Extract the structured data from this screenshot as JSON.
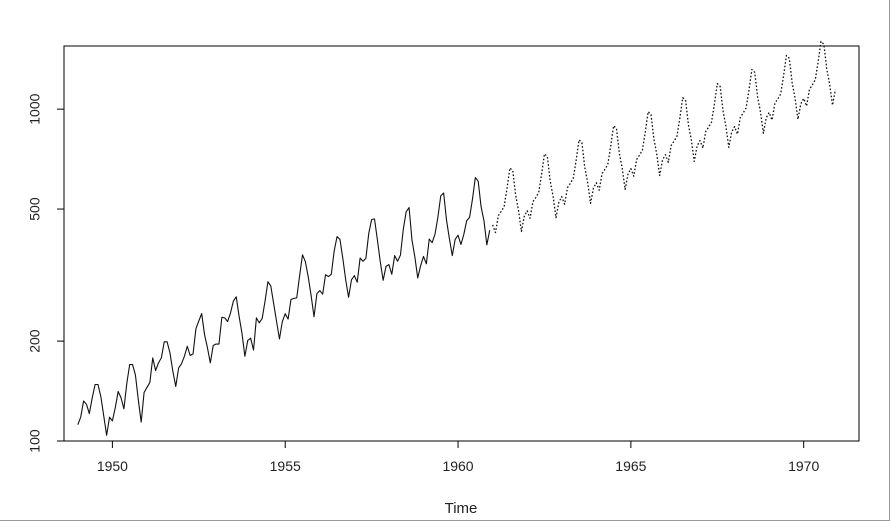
{
  "chart_data": {
    "type": "line",
    "title": "",
    "xlabel": "Time",
    "ylabel": "",
    "y_scale": "log",
    "xlim": [
      1948.6,
      1971.6
    ],
    "ylim": [
      100,
      1550
    ],
    "grid": false,
    "x_ticks": [
      1950,
      1955,
      1960,
      1965,
      1970
    ],
    "x_tick_labels": [
      "1950",
      "1955",
      "1960",
      "1965",
      "1970"
    ],
    "y_ticks": [
      100,
      200,
      500,
      1000
    ],
    "y_tick_labels": [
      "100",
      "200",
      "500",
      "1000"
    ],
    "series": [
      {
        "line_style": "solid",
        "x_start": 1949.0,
        "x_step": 0.0833333,
        "values": [
          112,
          118,
          132,
          129,
          121,
          135,
          148,
          148,
          136,
          119,
          104,
          118,
          115,
          126,
          141,
          135,
          125,
          149,
          170,
          170,
          158,
          133,
          114,
          140,
          145,
          150,
          178,
          163,
          172,
          178,
          199,
          199,
          184,
          162,
          146,
          166,
          171,
          180,
          193,
          181,
          183,
          218,
          230,
          242,
          209,
          191,
          172,
          194,
          196,
          196,
          236,
          235,
          229,
          243,
          264,
          272,
          237,
          211,
          180,
          201,
          204,
          188,
          235,
          227,
          234,
          264,
          302,
          293,
          259,
          229,
          203,
          229,
          242,
          233,
          267,
          269,
          270,
          315,
          364,
          347,
          312,
          274,
          237,
          278,
          284,
          277,
          317,
          313,
          318,
          374,
          413,
          405,
          355,
          306,
          271,
          306,
          315,
          301,
          356,
          348,
          355,
          422,
          465,
          467,
          404,
          347,
          305,
          336,
          340,
          318,
          362,
          348,
          363,
          435,
          491,
          505,
          404,
          359,
          310,
          337,
          360,
          342,
          406,
          396,
          420,
          472,
          548,
          559,
          463,
          407,
          362,
          405,
          417,
          391,
          419,
          461,
          472,
          535,
          622,
          606,
          508,
          461,
          390,
          432
        ]
      },
      {
        "line_style": "dotted",
        "x_start": 1961.0,
        "x_step": 0.0833333,
        "values": [
          448,
          425,
          478,
          492,
          509,
          577,
          665,
          653,
          551,
          495,
          428,
          476,
          494,
          469,
          526,
          542,
          561,
          636,
          733,
          720,
          607,
          546,
          471,
          524,
          545,
          517,
          580,
          598,
          619,
          701,
          808,
          793,
          668,
          601,
          520,
          578,
          600,
          570,
          640,
          659,
          682,
          773,
          891,
          874,
          737,
          663,
          573,
          637,
          662,
          628,
          705,
          727,
          752,
          852,
          983,
          963,
          812,
          731,
          631,
          703,
          729,
          692,
          778,
          801,
          829,
          939,
          1083,
          1062,
          896,
          806,
          696,
          775,
          804,
          763,
          857,
          883,
          914,
          1035,
          1194,
          1171,
          988,
          888,
          767,
          854,
          886,
          841,
          945,
          974,
          1008,
          1141,
          1317,
          1291,
          1089,
          980,
          846,
          942,
          977,
          927,
          1042,
          1073,
          1111,
          1258,
          1451,
          1423,
          1200,
          1080,
          932,
          1038,
          1077,
          1022,
          1148,
          1183,
          1225,
          1387,
          1600,
          1569,
          1323,
          1191,
          1028,
          1145
        ]
      }
    ]
  }
}
